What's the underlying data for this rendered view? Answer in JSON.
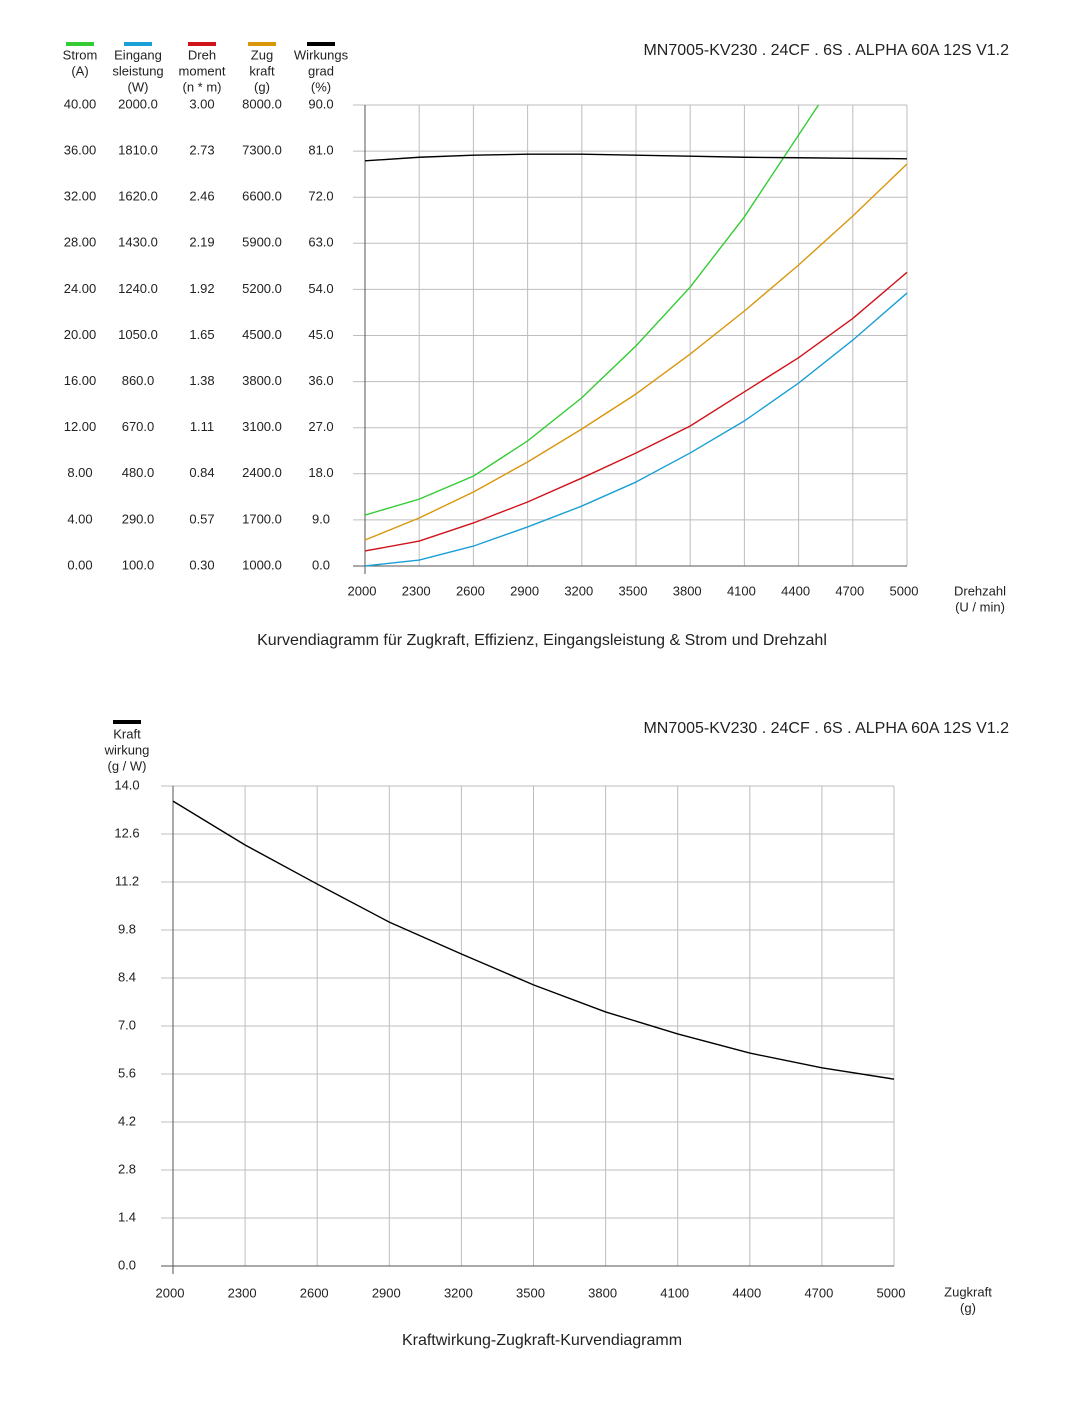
{
  "chart_data": [
    {
      "type": "line",
      "title": "MN7005-KV230 . 24CF . 6S . ALPHA 60A 12S V1.2",
      "caption": "Kurvendiagramm für Zugkraft, Effizienz, Eingangsleistung &  Strom und Drehzahl",
      "xlabel": [
        "Drehzahl",
        "(U / min)"
      ],
      "xlim": [
        2000,
        5000
      ],
      "xticks": [
        2000,
        2300,
        2600,
        2900,
        3200,
        3500,
        3800,
        4100,
        4400,
        4700,
        5000
      ],
      "grid": true,
      "series": [
        {
          "name": [
            "Strom",
            "(A)"
          ],
          "color": "#33cc33",
          "x": [
            2000,
            2300,
            2600,
            2900,
            3200,
            3500,
            3800,
            4100,
            4400,
            4510
          ],
          "values": [
            4.42,
            5.8,
            7.8,
            10.85,
            14.6,
            19.1,
            24.2,
            30.3,
            37.4,
            40
          ],
          "ylim": [
            0,
            40
          ],
          "yticks": [
            {
              "value": 0,
              "label": "0.00"
            },
            {
              "value": 4,
              "label": "4.00"
            },
            {
              "value": 8,
              "label": "8.00"
            },
            {
              "value": 12,
              "label": "12.00"
            },
            {
              "value": 16,
              "label": "16.00"
            },
            {
              "value": 20,
              "label": "20.00"
            },
            {
              "value": 24,
              "label": "24.00"
            },
            {
              "value": 28,
              "label": "28.00"
            },
            {
              "value": 32,
              "label": "32.00"
            },
            {
              "value": 36,
              "label": "36.00"
            },
            {
              "value": 40,
              "label": "40.00"
            }
          ]
        },
        {
          "name": [
            "Eingang",
            "sleistung",
            "(W)"
          ],
          "color": "#1a9fd6",
          "x": [
            2000,
            2300,
            2600,
            2900,
            3200,
            3500,
            3800,
            4100,
            4400,
            4700,
            5000
          ],
          "values": [
            100,
            124.7,
            182,
            261,
            347,
            446,
            566,
            698,
            854,
            1031,
            1225
          ],
          "ylim": [
            100,
            2000
          ],
          "yticks": [
            {
              "value": 100,
              "label": "100.0"
            },
            {
              "value": 290,
              "label": "290.0"
            },
            {
              "value": 480,
              "label": "480.0"
            },
            {
              "value": 670,
              "label": "670.0"
            },
            {
              "value": 860,
              "label": "860.0"
            },
            {
              "value": 1050,
              "label": "1050.0"
            },
            {
              "value": 1240,
              "label": "1240.0"
            },
            {
              "value": 1430,
              "label": "1430.0"
            },
            {
              "value": 1620,
              "label": "1620.0"
            },
            {
              "value": 1810,
              "label": "1810.0"
            },
            {
              "value": 2000,
              "label": "2000.0"
            }
          ]
        },
        {
          "name": [
            "Dreh",
            "moment",
            "(n * m)"
          ],
          "color": "#d0121b",
          "x": [
            2000,
            2300,
            2600,
            2900,
            3200,
            3500,
            3800,
            4100,
            4400,
            4700,
            5000
          ],
          "values": [
            0.388,
            0.446,
            0.552,
            0.675,
            0.815,
            0.962,
            1.12,
            1.32,
            1.52,
            1.75,
            2.02
          ],
          "ylim": [
            0.3,
            3
          ],
          "yticks": [
            {
              "value": 0.3,
              "label": "0.30"
            },
            0.57,
            0.84,
            1.11,
            1.38,
            1.65,
            1.92,
            2.19,
            2.46,
            2.73,
            {
              "value": 3,
              "label": "3.00"
            }
          ]
        },
        {
          "name": [
            "Zug",
            "kraft",
            "(g)"
          ],
          "color": "#d9960b",
          "x": [
            2000,
            2300,
            2600,
            2900,
            3200,
            3500,
            3800,
            4100,
            4400,
            4700,
            5000
          ],
          "values": [
            1395,
            1729,
            2124,
            2579,
            3080,
            3612,
            4219,
            4872,
            5570,
            6315,
            7104
          ],
          "ylim": [
            1000,
            8000
          ],
          "yticks": [
            {
              "value": 1000,
              "label": "1000.0"
            },
            {
              "value": 1700,
              "label": "1700.0"
            },
            {
              "value": 2400,
              "label": "2400.0"
            },
            {
              "value": 3100,
              "label": "3100.0"
            },
            {
              "value": 3800,
              "label": "3800.0"
            },
            {
              "value": 4500,
              "label": "4500.0"
            },
            {
              "value": 5200,
              "label": "5200.0"
            },
            {
              "value": 5900,
              "label": "5900.0"
            },
            {
              "value": 6600,
              "label": "6600.0"
            },
            {
              "value": 7300,
              "label": "7300.0"
            },
            {
              "value": 8000,
              "label": "8000.0"
            }
          ]
        },
        {
          "name": [
            "Wirkungs",
            "grad",
            "(%)"
          ],
          "color": "#000000",
          "x": [
            2000,
            2300,
            2600,
            2900,
            3200,
            3500,
            3800,
            4100,
            4400,
            4700,
            5000
          ],
          "values": [
            79.1,
            79.8,
            80.2,
            80.4,
            80.4,
            80.2,
            80.0,
            79.8,
            79.7,
            79.6,
            79.5
          ],
          "ylim": [
            0,
            90
          ],
          "yticks": [
            {
              "value": 0,
              "label": "0.0"
            },
            {
              "value": 9,
              "label": "9.0"
            },
            {
              "value": 18,
              "label": "18.0"
            },
            {
              "value": 27,
              "label": "27.0"
            },
            {
              "value": 36,
              "label": "36.0"
            },
            {
              "value": 45,
              "label": "45.0"
            },
            {
              "value": 54,
              "label": "54.0"
            },
            {
              "value": 63,
              "label": "63.0"
            },
            {
              "value": 72,
              "label": "72.0"
            },
            {
              "value": 81,
              "label": "81.0"
            },
            {
              "value": 90,
              "label": "90.0"
            }
          ]
        }
      ]
    },
    {
      "type": "line",
      "title": "MN7005-KV230 . 24CF . 6S . ALPHA 60A 12S V1.2",
      "caption": "Kraftwirkung-Zugkraft-Kurvendiagramm",
      "xlabel": [
        "Zugkraft",
        "(g)"
      ],
      "xlim": [
        2000,
        5000
      ],
      "xticks": [
        2000,
        2300,
        2600,
        2900,
        3200,
        3500,
        3800,
        4100,
        4400,
        4700,
        5000
      ],
      "grid": true,
      "series": [
        {
          "name": [
            "Kraft",
            "wirkung",
            "(g / W)"
          ],
          "color": "#000000",
          "x": [
            2000,
            2300,
            2600,
            2900,
            3200,
            3500,
            3800,
            4100,
            4400,
            4700,
            5000
          ],
          "values": [
            13.56,
            12.28,
            11.14,
            10.03,
            9.1,
            8.2,
            7.41,
            6.77,
            6.21,
            5.78,
            5.45
          ],
          "ylim": [
            0,
            14
          ],
          "yticks": [
            {
              "value": 0,
              "label": "0.0"
            },
            1.4,
            2.8,
            4.2,
            5.6,
            {
              "value": 7,
              "label": "7.0"
            },
            8.4,
            9.8,
            11.2,
            12.6,
            {
              "value": 14,
              "label": "14.0"
            }
          ]
        }
      ]
    }
  ]
}
